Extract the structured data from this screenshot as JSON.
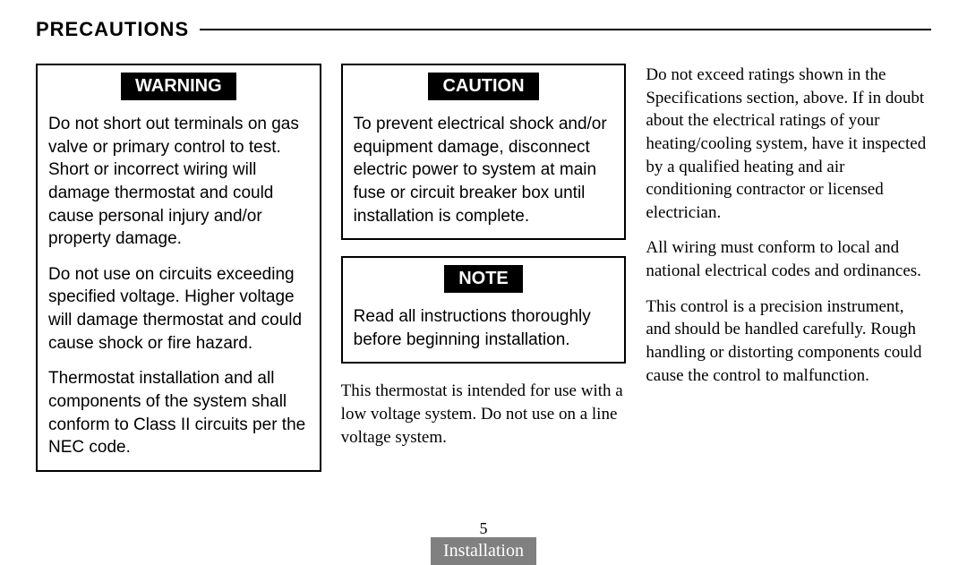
{
  "header": {
    "title": "PRECAUTIONS"
  },
  "warning": {
    "label": "WARNING",
    "p1": "Do not short out terminals on gas valve or primary control to test. Short or incorrect wiring will damage thermostat and could cause personal injury and/or property damage.",
    "p2": "Do not use on circuits exceeding specified voltage. Higher voltage will damage thermostat and could cause shock or fire hazard.",
    "p3": "Thermostat installation and all components of the system shall conform to Class II circuits per the NEC code."
  },
  "caution": {
    "label": "CAUTION",
    "p1": "To prevent electrical shock and/or equipment damage, disconnect electric power to system at main fuse or circuit breaker box until installation is complete."
  },
  "note": {
    "label": "NOTE",
    "p1": "Read all instructions thoroughly before beginning installation."
  },
  "col2text": {
    "p1": "This thermostat is intended for use with a low voltage system. Do not use on a line voltage system."
  },
  "col3text": {
    "p1": "Do not exceed ratings shown in the Specifications section, above. If in doubt about the electrical ratings of your heating/cooling system, have it inspected by a qualified heating and air conditioning contractor or licensed electrician.",
    "p2": "All wiring must conform to local and national electrical codes and ordinances.",
    "p3": "This control is a precision instru­ment, and should be handled carefully. Rough handling or distorting components could cause the control to malfunction."
  },
  "pageNumber": "5",
  "tab": "Installation"
}
